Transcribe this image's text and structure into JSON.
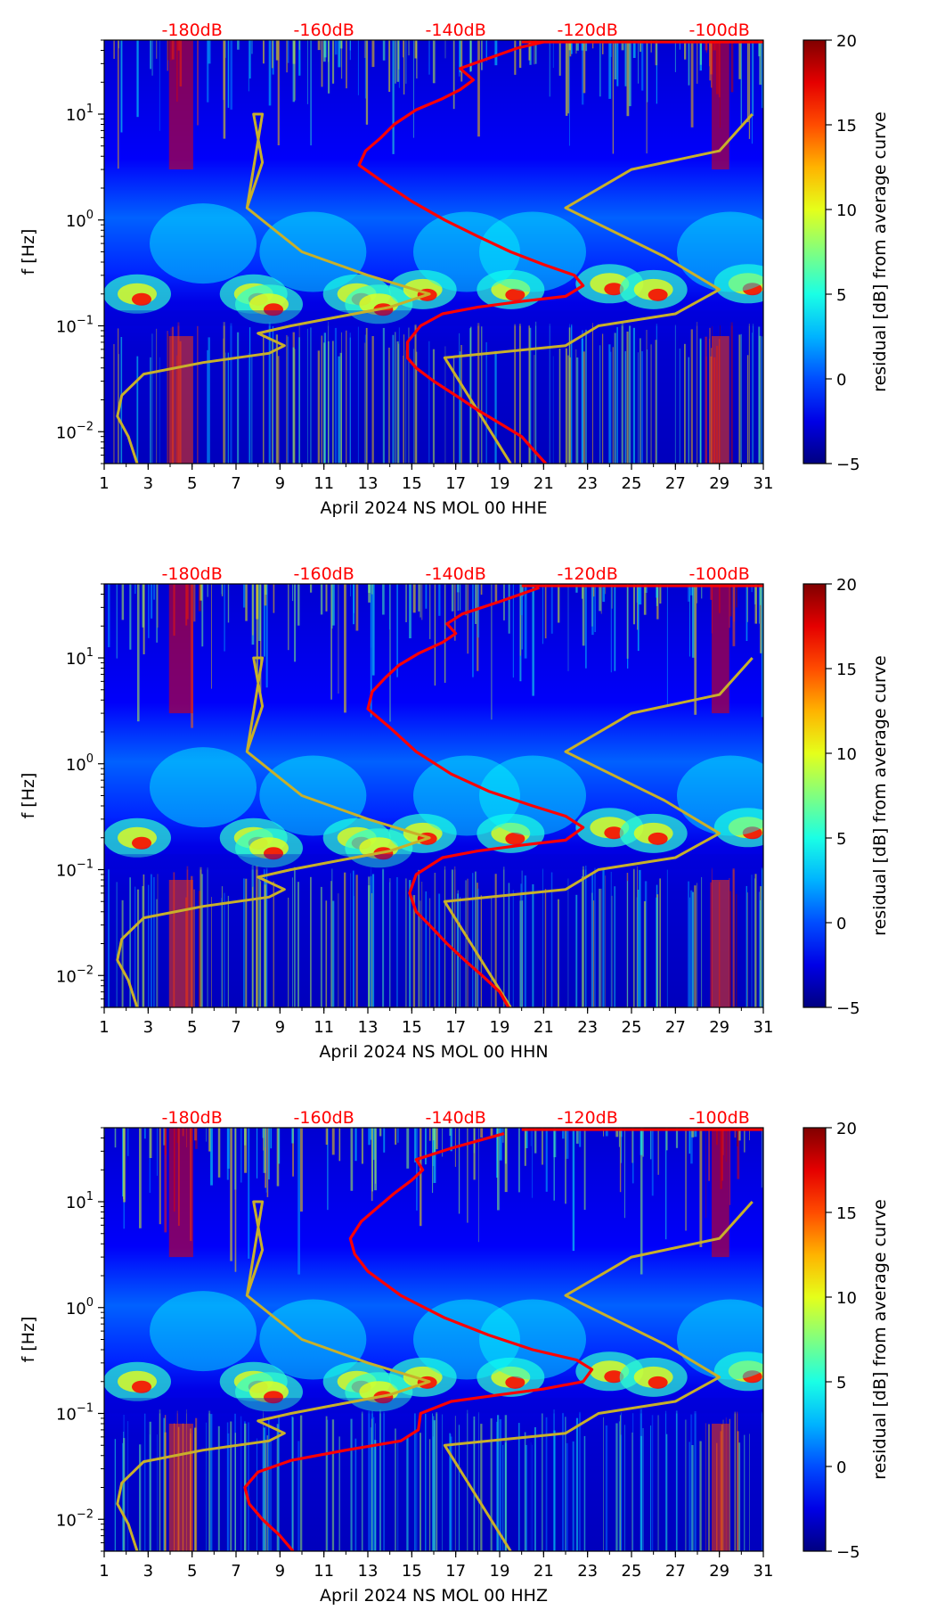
{
  "figure": {
    "colormap": "jet",
    "curve_color": "#ff0000",
    "model_color": "#c8b02a"
  },
  "chart_data": [
    {
      "type": "heatmap",
      "xlabel": "April 2024 NS MOL 00 HHE",
      "ylabel": "f [Hz]",
      "xlim": [
        1,
        31
      ],
      "ylim": [
        0.005,
        50
      ],
      "x_ticks": [
        "1",
        "3",
        "5",
        "7",
        "9",
        "11",
        "13",
        "15",
        "17",
        "19",
        "21",
        "23",
        "25",
        "27",
        "29",
        "31"
      ],
      "y_ticks": [
        {
          "base": "10",
          "exp": "1"
        },
        {
          "base": "10",
          "exp": "0"
        },
        {
          "base": "10",
          "exp": "−1"
        },
        {
          "base": "10",
          "exp": "−2"
        }
      ],
      "top_db_labels": [
        "-180dB",
        "-160dB",
        "-140dB",
        "-120dB",
        "-100dB"
      ],
      "colorbar": {
        "label": "residual [dB] from average curve",
        "min": -5,
        "max": 20,
        "ticks": [
          "20",
          "15",
          "10",
          "5",
          "0",
          "−5"
        ]
      },
      "average_curve": [
        [
          21.1,
          0.005
        ],
        [
          20.6,
          0.0065
        ],
        [
          20,
          0.009
        ],
        [
          19,
          0.012
        ],
        [
          18,
          0.016
        ],
        [
          17,
          0.022
        ],
        [
          16,
          0.03
        ],
        [
          15.2,
          0.04
        ],
        [
          14.8,
          0.05
        ],
        [
          14.8,
          0.07
        ],
        [
          15.4,
          0.1
        ],
        [
          16.4,
          0.13
        ],
        [
          18,
          0.15
        ],
        [
          20,
          0.17
        ],
        [
          22,
          0.19
        ],
        [
          22.8,
          0.24
        ],
        [
          22.4,
          0.3
        ],
        [
          21,
          0.38
        ],
        [
          19.5,
          0.5
        ],
        [
          18,
          0.7
        ],
        [
          16.5,
          1.0
        ],
        [
          15,
          1.5
        ],
        [
          13.8,
          2.2
        ],
        [
          12.6,
          3.3
        ],
        [
          12.9,
          4.5
        ],
        [
          13.6,
          6
        ],
        [
          14.2,
          8
        ],
        [
          15.2,
          11
        ],
        [
          16.4,
          14
        ],
        [
          17.2,
          17
        ],
        [
          17.8,
          21
        ],
        [
          17.2,
          27
        ],
        [
          18.2,
          32
        ],
        [
          19.8,
          42
        ],
        [
          21,
          48
        ]
      ],
      "model_curve": [
        [
          2.5,
          0.005
        ],
        [
          2.1,
          0.009
        ],
        [
          1.6,
          0.014
        ],
        [
          1.8,
          0.022
        ],
        [
          2.8,
          0.035
        ],
        [
          5.5,
          0.045
        ],
        [
          8.5,
          0.055
        ],
        [
          9.2,
          0.065
        ],
        [
          8,
          0.085
        ],
        [
          9.5,
          0.1
        ],
        [
          11.5,
          0.12
        ],
        [
          14,
          0.15
        ],
        [
          15.8,
          0.2
        ],
        [
          13,
          0.3
        ],
        [
          10,
          0.5
        ],
        [
          7.5,
          1.3
        ],
        [
          8.2,
          3.5
        ],
        [
          7.8,
          10
        ],
        [
          8.2,
          10
        ],
        [
          7.5,
          1.3
        ]
      ],
      "model_curve_2": [
        [
          19.5,
          0.005
        ],
        [
          16.5,
          0.05
        ],
        [
          22,
          0.065
        ],
        [
          23.5,
          0.1
        ],
        [
          27,
          0.13
        ],
        [
          29,
          0.22
        ],
        [
          26.5,
          0.45
        ],
        [
          22,
          1.3
        ],
        [
          25,
          3
        ],
        [
          29,
          4.5
        ],
        [
          30.5,
          10
        ]
      ]
    },
    {
      "type": "heatmap",
      "xlabel": "April 2024 NS MOL 00 HHN",
      "ylabel": "f [Hz]",
      "xlim": [
        1,
        31
      ],
      "ylim": [
        0.005,
        50
      ],
      "x_ticks": [
        "1",
        "3",
        "5",
        "7",
        "9",
        "11",
        "13",
        "15",
        "17",
        "19",
        "21",
        "23",
        "25",
        "27",
        "29",
        "31"
      ],
      "y_ticks": [
        {
          "base": "10",
          "exp": "1"
        },
        {
          "base": "10",
          "exp": "0"
        },
        {
          "base": "10",
          "exp": "−1"
        },
        {
          "base": "10",
          "exp": "−2"
        }
      ],
      "top_db_labels": [
        "-180dB",
        "-160dB",
        "-140dB",
        "-120dB",
        "-100dB"
      ],
      "colorbar": {
        "label": "residual [dB] from average curve",
        "min": -5,
        "max": 20,
        "ticks": [
          "20",
          "15",
          "10",
          "5",
          "0",
          "−5"
        ]
      },
      "average_curve": [
        [
          19.4,
          0.005
        ],
        [
          19,
          0.007
        ],
        [
          18.2,
          0.01
        ],
        [
          17.4,
          0.014
        ],
        [
          16.6,
          0.02
        ],
        [
          15.8,
          0.03
        ],
        [
          15.2,
          0.04
        ],
        [
          14.9,
          0.06
        ],
        [
          15.2,
          0.09
        ],
        [
          16.4,
          0.13
        ],
        [
          18,
          0.15
        ],
        [
          20,
          0.17
        ],
        [
          22,
          0.19
        ],
        [
          22.8,
          0.25
        ],
        [
          22,
          0.32
        ],
        [
          20.5,
          0.4
        ],
        [
          18.5,
          0.55
        ],
        [
          16.8,
          0.8
        ],
        [
          15.2,
          1.3
        ],
        [
          14,
          2.2
        ],
        [
          13,
          3.3
        ],
        [
          13.2,
          4.8
        ],
        [
          13.8,
          6.5
        ],
        [
          14.4,
          8.5
        ],
        [
          15.3,
          11
        ],
        [
          16.4,
          14
        ],
        [
          17,
          17
        ],
        [
          16.6,
          21
        ],
        [
          17.3,
          26
        ],
        [
          19,
          34
        ],
        [
          20.8,
          46
        ]
      ],
      "model_curve": [
        [
          2.5,
          0.005
        ],
        [
          2.1,
          0.009
        ],
        [
          1.6,
          0.014
        ],
        [
          1.8,
          0.022
        ],
        [
          2.8,
          0.035
        ],
        [
          5.5,
          0.045
        ],
        [
          8.5,
          0.055
        ],
        [
          9.2,
          0.065
        ],
        [
          8,
          0.085
        ],
        [
          9.5,
          0.1
        ],
        [
          11.5,
          0.12
        ],
        [
          14,
          0.15
        ],
        [
          15.8,
          0.2
        ],
        [
          13,
          0.3
        ],
        [
          10,
          0.5
        ],
        [
          7.5,
          1.3
        ],
        [
          8.2,
          3.5
        ],
        [
          7.8,
          10
        ],
        [
          8.2,
          10
        ],
        [
          7.5,
          1.3
        ]
      ],
      "model_curve_2": [
        [
          19.5,
          0.005
        ],
        [
          16.5,
          0.05
        ],
        [
          22,
          0.065
        ],
        [
          23.5,
          0.1
        ],
        [
          27,
          0.13
        ],
        [
          29,
          0.22
        ],
        [
          26.5,
          0.45
        ],
        [
          22,
          1.3
        ],
        [
          25,
          3
        ],
        [
          29,
          4.5
        ],
        [
          30.5,
          10
        ]
      ]
    },
    {
      "type": "heatmap",
      "xlabel": "April 2024 NS MOL 00 HHZ",
      "ylabel": "f [Hz]",
      "xlim": [
        1,
        31
      ],
      "ylim": [
        0.005,
        50
      ],
      "x_ticks": [
        "1",
        "3",
        "5",
        "7",
        "9",
        "11",
        "13",
        "15",
        "17",
        "19",
        "21",
        "23",
        "25",
        "27",
        "29",
        "31"
      ],
      "y_ticks": [
        {
          "base": "10",
          "exp": "1"
        },
        {
          "base": "10",
          "exp": "0"
        },
        {
          "base": "10",
          "exp": "−1"
        },
        {
          "base": "10",
          "exp": "−2"
        }
      ],
      "top_db_labels": [
        "-180dB",
        "-160dB",
        "-140dB",
        "-120dB",
        "-100dB"
      ],
      "colorbar": {
        "label": "residual [dB] from average curve",
        "min": -5,
        "max": 20,
        "ticks": [
          "20",
          "15",
          "10",
          "5",
          "0",
          "−5"
        ]
      },
      "average_curve": [
        [
          9.6,
          0.005
        ],
        [
          9,
          0.007
        ],
        [
          8.2,
          0.01
        ],
        [
          7.6,
          0.014
        ],
        [
          7.4,
          0.02
        ],
        [
          8,
          0.028
        ],
        [
          9.5,
          0.036
        ],
        [
          12,
          0.045
        ],
        [
          14.5,
          0.055
        ],
        [
          15.3,
          0.07
        ],
        [
          15.4,
          0.1
        ],
        [
          16.8,
          0.13
        ],
        [
          19,
          0.15
        ],
        [
          21,
          0.17
        ],
        [
          22.8,
          0.2
        ],
        [
          23.2,
          0.26
        ],
        [
          22.5,
          0.32
        ],
        [
          20.5,
          0.4
        ],
        [
          18.5,
          0.55
        ],
        [
          16.5,
          0.8
        ],
        [
          14.5,
          1.3
        ],
        [
          13,
          2.2
        ],
        [
          12.4,
          3.2
        ],
        [
          12.2,
          4.5
        ],
        [
          12.7,
          6.5
        ],
        [
          13.5,
          9
        ],
        [
          14.2,
          12
        ],
        [
          15,
          16
        ],
        [
          15.5,
          20
        ],
        [
          15.2,
          25
        ],
        [
          16.8,
          32
        ],
        [
          19.2,
          44
        ]
      ],
      "model_curve": [
        [
          2.5,
          0.005
        ],
        [
          2.1,
          0.009
        ],
        [
          1.6,
          0.014
        ],
        [
          1.8,
          0.022
        ],
        [
          2.8,
          0.035
        ],
        [
          5.5,
          0.045
        ],
        [
          8.5,
          0.055
        ],
        [
          9.2,
          0.065
        ],
        [
          8,
          0.085
        ],
        [
          9.5,
          0.1
        ],
        [
          11.5,
          0.12
        ],
        [
          14,
          0.15
        ],
        [
          15.8,
          0.2
        ],
        [
          13,
          0.3
        ],
        [
          10,
          0.5
        ],
        [
          7.5,
          1.3
        ],
        [
          8.2,
          3.5
        ],
        [
          7.8,
          10
        ],
        [
          8.2,
          10
        ],
        [
          7.5,
          1.3
        ]
      ],
      "model_curve_2": [
        [
          19.5,
          0.005
        ],
        [
          16.5,
          0.05
        ],
        [
          22,
          0.065
        ],
        [
          23.5,
          0.1
        ],
        [
          27,
          0.13
        ],
        [
          29,
          0.22
        ],
        [
          26.5,
          0.45
        ],
        [
          22,
          1.3
        ],
        [
          25,
          3
        ],
        [
          29,
          4.5
        ],
        [
          30.5,
          10
        ]
      ]
    }
  ]
}
